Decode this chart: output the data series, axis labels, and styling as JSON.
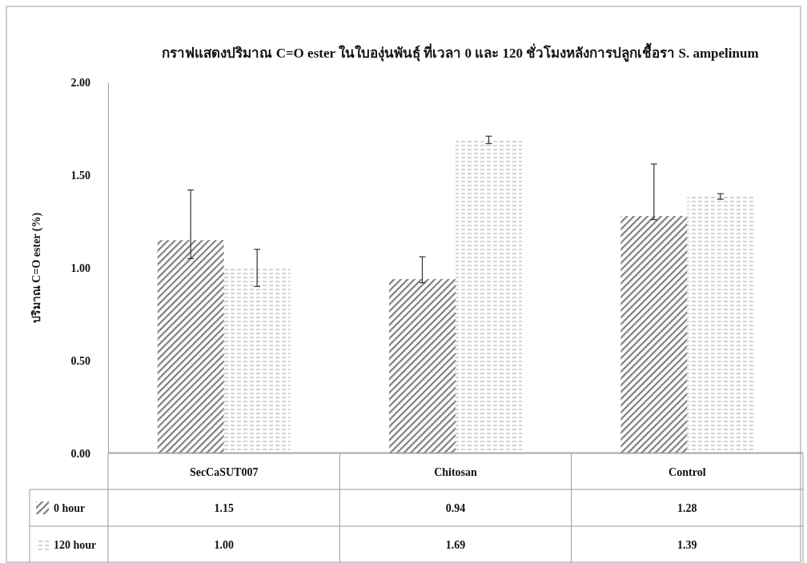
{
  "chart_data": {
    "type": "bar",
    "title": "กราฟแสดงปริมาณ C=O ester ในใบองุ่นพันธุ์ ที่เวลา 0 และ 120 ชั่วโมงหลังการปลูกเชื้อรา S. ampelinum",
    "ylabel": "ปริมาณ C=O ester  (%)",
    "categories": [
      "SecCaSUT007",
      "Chitosan",
      "Control"
    ],
    "series": [
      {
        "name": "0 hour",
        "color": "#7f7f7f",
        "values": [
          1.15,
          0.94,
          1.28
        ],
        "value_labels": [
          "1.15",
          "0.94",
          "1.28"
        ],
        "errors": [
          [
            1.05,
            1.42
          ],
          [
            0.92,
            1.06
          ],
          [
            1.26,
            1.56
          ]
        ]
      },
      {
        "name": "120 hour",
        "color": "#a6a6a6",
        "values": [
          1.0,
          1.69,
          1.39
        ],
        "value_labels": [
          "1.00",
          "1.69",
          "1.39"
        ],
        "errors": [
          [
            0.9,
            1.1
          ],
          [
            1.67,
            1.71
          ],
          [
            1.37,
            1.4
          ]
        ]
      }
    ],
    "ylim": [
      0,
      2
    ],
    "yticks": [
      {
        "value": 0,
        "label": "0.00"
      },
      {
        "value": 0.5,
        "label": "0.50"
      },
      {
        "value": 1,
        "label": "1.00"
      },
      {
        "value": 1.5,
        "label": "1.50"
      },
      {
        "value": 2,
        "label": "2.00"
      }
    ],
    "legend": "bottom left"
  }
}
